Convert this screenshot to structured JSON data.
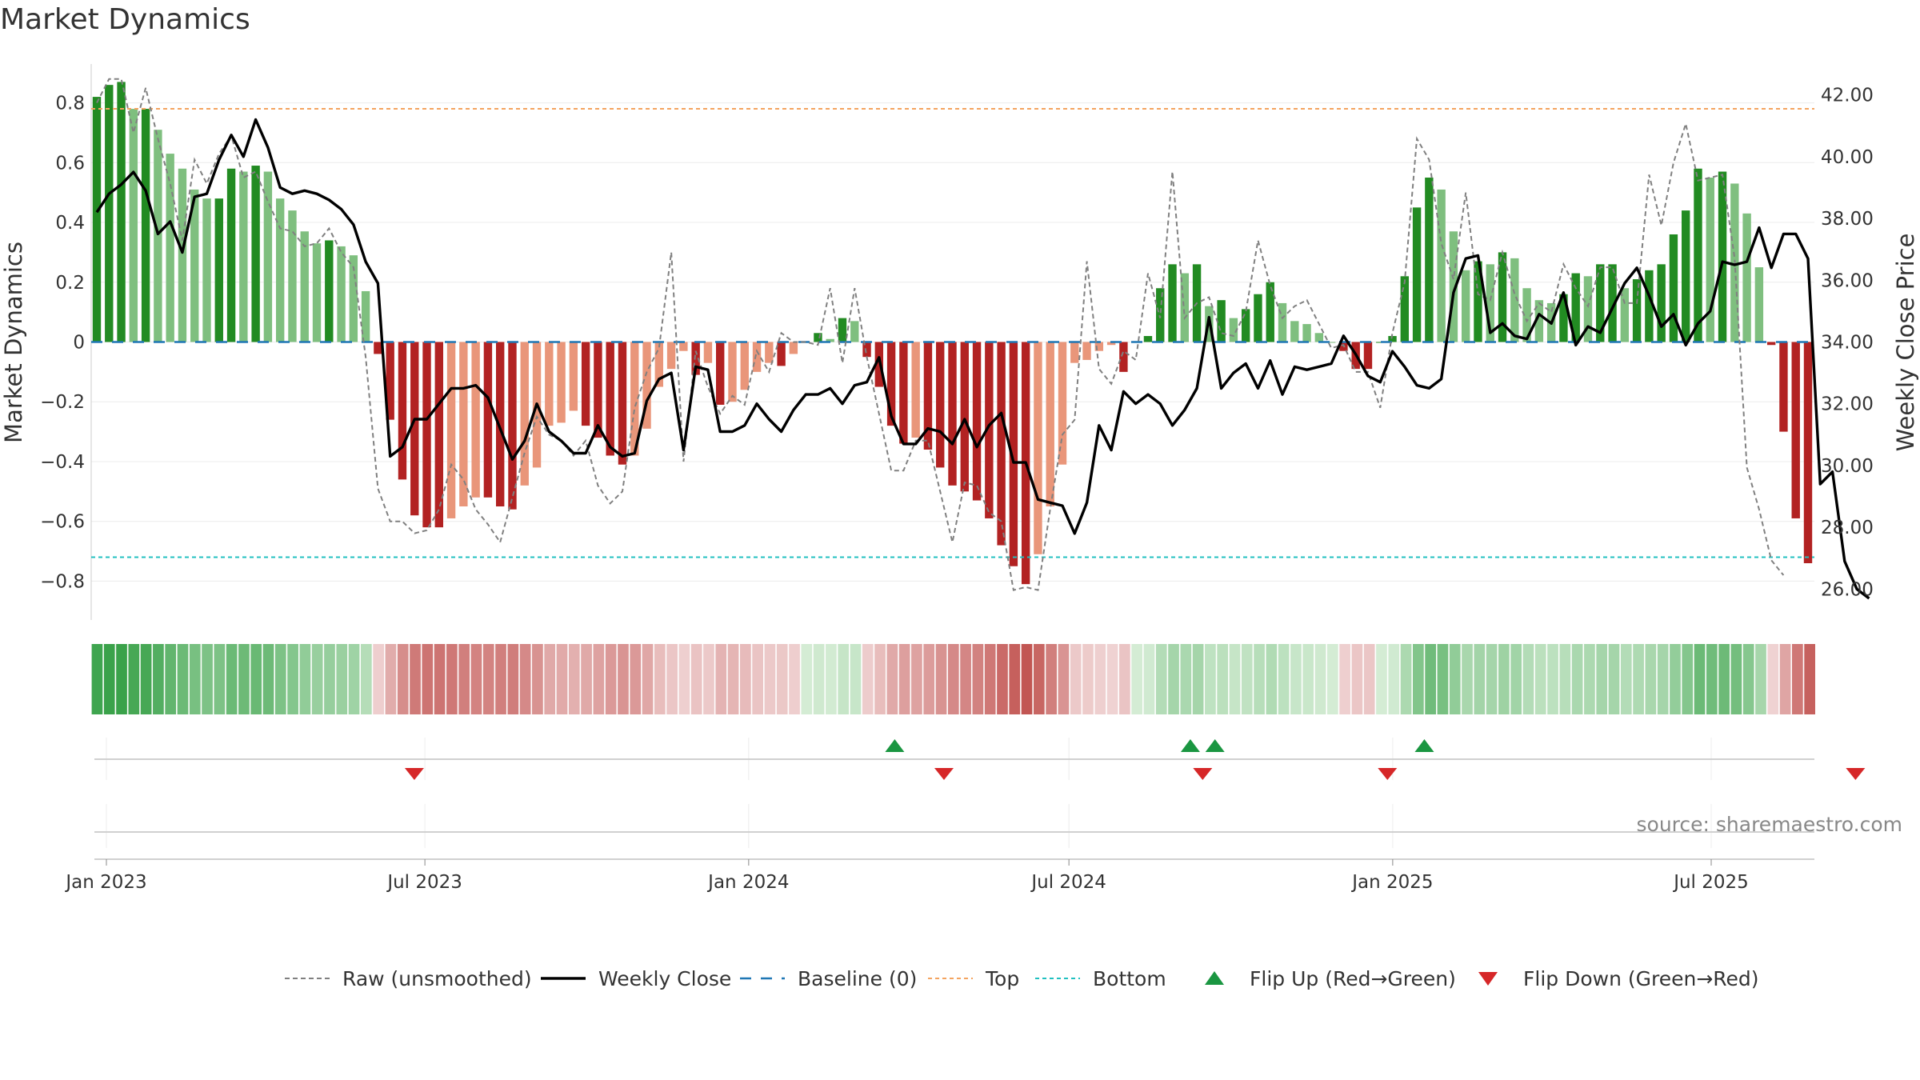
{
  "title": "Market Dynamics",
  "source": "source: sharemaestro.com",
  "colors": {
    "bull_strong": "#228b22",
    "bull_weak": "#7fbf7f",
    "bear_strong": "#b22222",
    "bear_weak": "#e9967a",
    "close": "#000000",
    "raw": "#808080",
    "baseline": "#1f77b4",
    "top": "#f4a460",
    "bottom": "#20c0c0",
    "flip_up": "#1a9641",
    "flip_down": "#d62728"
  },
  "chart_data": {
    "type": "bar+line",
    "title": "Market Dynamics",
    "ylabel_left": "Market Dynamics",
    "ylabel_right": "Weekly Close Price",
    "ylim_left": [
      -0.93,
      0.93
    ],
    "ylim_right": [
      25.0,
      43.0
    ],
    "yticks_left": [
      "0.8",
      "0.6",
      "0.4",
      "0.2",
      "0",
      "−0.2",
      "−0.4",
      "−0.6",
      "−0.8"
    ],
    "ytick_values_left": [
      0.8,
      0.6,
      0.4,
      0.2,
      0,
      -0.2,
      -0.4,
      -0.6,
      -0.8
    ],
    "yticks_right": [
      "42.00",
      "40.00",
      "38.00",
      "36.00",
      "34.00",
      "32.00",
      "30.00",
      "28.00",
      "26.00"
    ],
    "ytick_values_right": [
      42,
      40,
      38,
      36,
      34,
      32,
      30,
      28,
      26
    ],
    "x_start": "2023-01-01",
    "x_labels": [
      "Jan 2023",
      "Jul 2023",
      "Jan 2024",
      "Jul 2024",
      "Jan 2025",
      "Jul 2025"
    ],
    "x_label_dates": [
      "2023-01-01",
      "2023-07-01",
      "2024-01-01",
      "2024-07-01",
      "2025-01-01",
      "2025-07-01"
    ],
    "top_level": 0.78,
    "bottom_level": -0.72,
    "baseline": 0,
    "dynamics": [
      0.82,
      0.86,
      0.87,
      0.78,
      0.78,
      0.71,
      0.63,
      0.58,
      0.51,
      0.48,
      0.48,
      0.58,
      0.57,
      0.59,
      0.57,
      0.48,
      0.44,
      0.37,
      0.33,
      0.34,
      0.32,
      0.29,
      0.17,
      -0.04,
      -0.26,
      -0.46,
      -0.58,
      -0.62,
      -0.62,
      -0.59,
      -0.55,
      -0.52,
      -0.52,
      -0.55,
      -0.56,
      -0.48,
      -0.42,
      -0.28,
      -0.27,
      -0.23,
      -0.28,
      -0.32,
      -0.38,
      -0.41,
      -0.38,
      -0.29,
      -0.15,
      -0.09,
      -0.03,
      -0.11,
      -0.07,
      -0.21,
      -0.2,
      -0.16,
      -0.1,
      -0.07,
      -0.08,
      -0.04,
      0.0,
      0.03,
      0.01,
      0.08,
      0.07,
      -0.05,
      -0.15,
      -0.28,
      -0.34,
      -0.32,
      -0.36,
      -0.42,
      -0.48,
      -0.5,
      -0.53,
      -0.59,
      -0.68,
      -0.75,
      -0.81,
      -0.71,
      -0.55,
      -0.41,
      -0.07,
      -0.06,
      -0.03,
      -0.01,
      -0.1,
      0.0,
      0.02,
      0.18,
      0.26,
      0.23,
      0.26,
      0.12,
      0.14,
      0.08,
      0.11,
      0.16,
      0.2,
      0.13,
      0.07,
      0.06,
      0.03,
      0.0,
      -0.03,
      -0.09,
      -0.09,
      0.0,
      0.02,
      0.22,
      0.45,
      0.55,
      0.51,
      0.37,
      0.24,
      0.27,
      0.26,
      0.3,
      0.28,
      0.18,
      0.14,
      0.13,
      0.16,
      0.23,
      0.22,
      0.26,
      0.26,
      0.18,
      0.21,
      0.24,
      0.26,
      0.36,
      0.44,
      0.58,
      0.55,
      0.57,
      0.53,
      0.43,
      0.25,
      -0.01,
      -0.3,
      -0.59,
      -0.74
    ],
    "close": [
      38.2,
      38.8,
      39.1,
      39.5,
      38.9,
      37.5,
      37.9,
      36.9,
      38.7,
      38.8,
      39.9,
      40.7,
      40.0,
      41.2,
      40.3,
      39.0,
      38.8,
      38.9,
      38.8,
      38.6,
      38.3,
      37.8,
      36.6,
      35.9,
      30.3,
      30.6,
      31.5,
      31.5,
      32.0,
      32.5,
      32.5,
      32.6,
      32.2,
      31.2,
      30.2,
      30.8,
      32.0,
      31.1,
      30.8,
      30.4,
      30.4,
      31.3,
      30.6,
      30.3,
      30.4,
      32.1,
      32.8,
      33.0,
      30.5,
      33.2,
      33.1,
      31.1,
      31.1,
      31.3,
      32.0,
      31.5,
      31.1,
      31.8,
      32.3,
      32.3,
      32.5,
      32.0,
      32.6,
      32.7,
      33.5,
      31.6,
      30.7,
      30.7,
      31.2,
      31.1,
      30.7,
      31.5,
      30.6,
      31.3,
      31.7,
      30.1,
      30.1,
      28.9,
      28.8,
      28.7,
      27.8,
      28.8,
      31.3,
      30.5,
      32.4,
      32.0,
      32.3,
      32.0,
      31.3,
      31.8,
      32.5,
      34.8,
      32.5,
      33.0,
      33.3,
      32.5,
      33.4,
      32.3,
      33.2,
      33.1,
      33.2,
      33.3,
      34.2,
      33.6,
      32.9,
      32.7,
      33.7,
      33.2,
      32.6,
      32.5,
      32.8,
      35.6,
      36.7,
      36.8,
      34.3,
      34.6,
      34.2,
      34.1,
      34.9,
      34.6,
      35.6,
      33.9,
      34.5,
      34.3,
      35.1,
      35.9,
      36.4,
      35.5,
      34.5,
      34.9,
      33.9,
      34.6,
      35.0,
      36.6,
      36.5,
      36.6,
      37.7,
      36.4,
      37.5,
      37.5,
      36.7,
      29.4,
      29.8,
      26.9,
      26.0,
      25.7
    ],
    "raw": [
      0.8,
      0.88,
      0.88,
      0.7,
      0.85,
      0.68,
      0.53,
      0.34,
      0.61,
      0.53,
      0.63,
      0.69,
      0.55,
      0.57,
      0.47,
      0.38,
      0.37,
      0.32,
      0.33,
      0.38,
      0.3,
      0.25,
      -0.05,
      -0.49,
      -0.6,
      -0.6,
      -0.64,
      -0.63,
      -0.56,
      -0.41,
      -0.46,
      -0.56,
      -0.61,
      -0.67,
      -0.52,
      -0.37,
      -0.25,
      -0.31,
      -0.33,
      -0.38,
      -0.33,
      -0.48,
      -0.54,
      -0.5,
      -0.22,
      -0.1,
      -0.02,
      0.3,
      -0.4,
      -0.03,
      -0.15,
      -0.24,
      -0.18,
      -0.21,
      -0.03,
      -0.1,
      0.03,
      0.0,
      0.0,
      -0.01,
      0.18,
      -0.07,
      0.18,
      -0.05,
      -0.24,
      -0.43,
      -0.43,
      -0.33,
      -0.33,
      -0.5,
      -0.67,
      -0.47,
      -0.48,
      -0.57,
      -0.6,
      -0.83,
      -0.82,
      -0.83,
      -0.56,
      -0.31,
      -0.26,
      0.27,
      -0.09,
      -0.14,
      -0.03,
      -0.06,
      0.23,
      0.08,
      0.57,
      0.08,
      0.13,
      0.15,
      0.03,
      0.02,
      0.1,
      0.34,
      0.19,
      0.08,
      0.12,
      0.14,
      0.06,
      -0.02,
      -0.01,
      -0.1,
      -0.1,
      -0.22,
      0.03,
      0.2,
      0.68,
      0.61,
      0.33,
      0.21,
      0.5,
      0.16,
      0.14,
      0.3,
      0.16,
      0.07,
      0.13,
      0.1,
      0.26,
      0.18,
      0.12,
      0.25,
      0.25,
      0.13,
      0.13,
      0.56,
      0.39,
      0.6,
      0.73,
      0.54,
      0.55,
      0.56,
      0.28,
      -0.42,
      -0.56,
      -0.73,
      -0.78
    ],
    "flips_up": [
      "2024-03-24",
      "2024-09-08",
      "2024-09-22",
      "2025-01-19"
    ],
    "flips_down": [
      "2023-06-25",
      "2024-04-21",
      "2024-09-15",
      "2024-12-29",
      "2025-09-21"
    ],
    "legend": [
      {
        "label": "Raw (unsmoothed)",
        "style": "raw"
      },
      {
        "label": "Weekly Close",
        "style": "close"
      },
      {
        "label": "Baseline (0)",
        "style": "baseline"
      },
      {
        "label": "Top",
        "style": "top"
      },
      {
        "label": "Bottom",
        "style": "bottom"
      },
      {
        "label": "Flip Up (Red→Green)",
        "style": "flip_up"
      },
      {
        "label": "Flip Down (Green→Red)",
        "style": "flip_down"
      }
    ]
  }
}
